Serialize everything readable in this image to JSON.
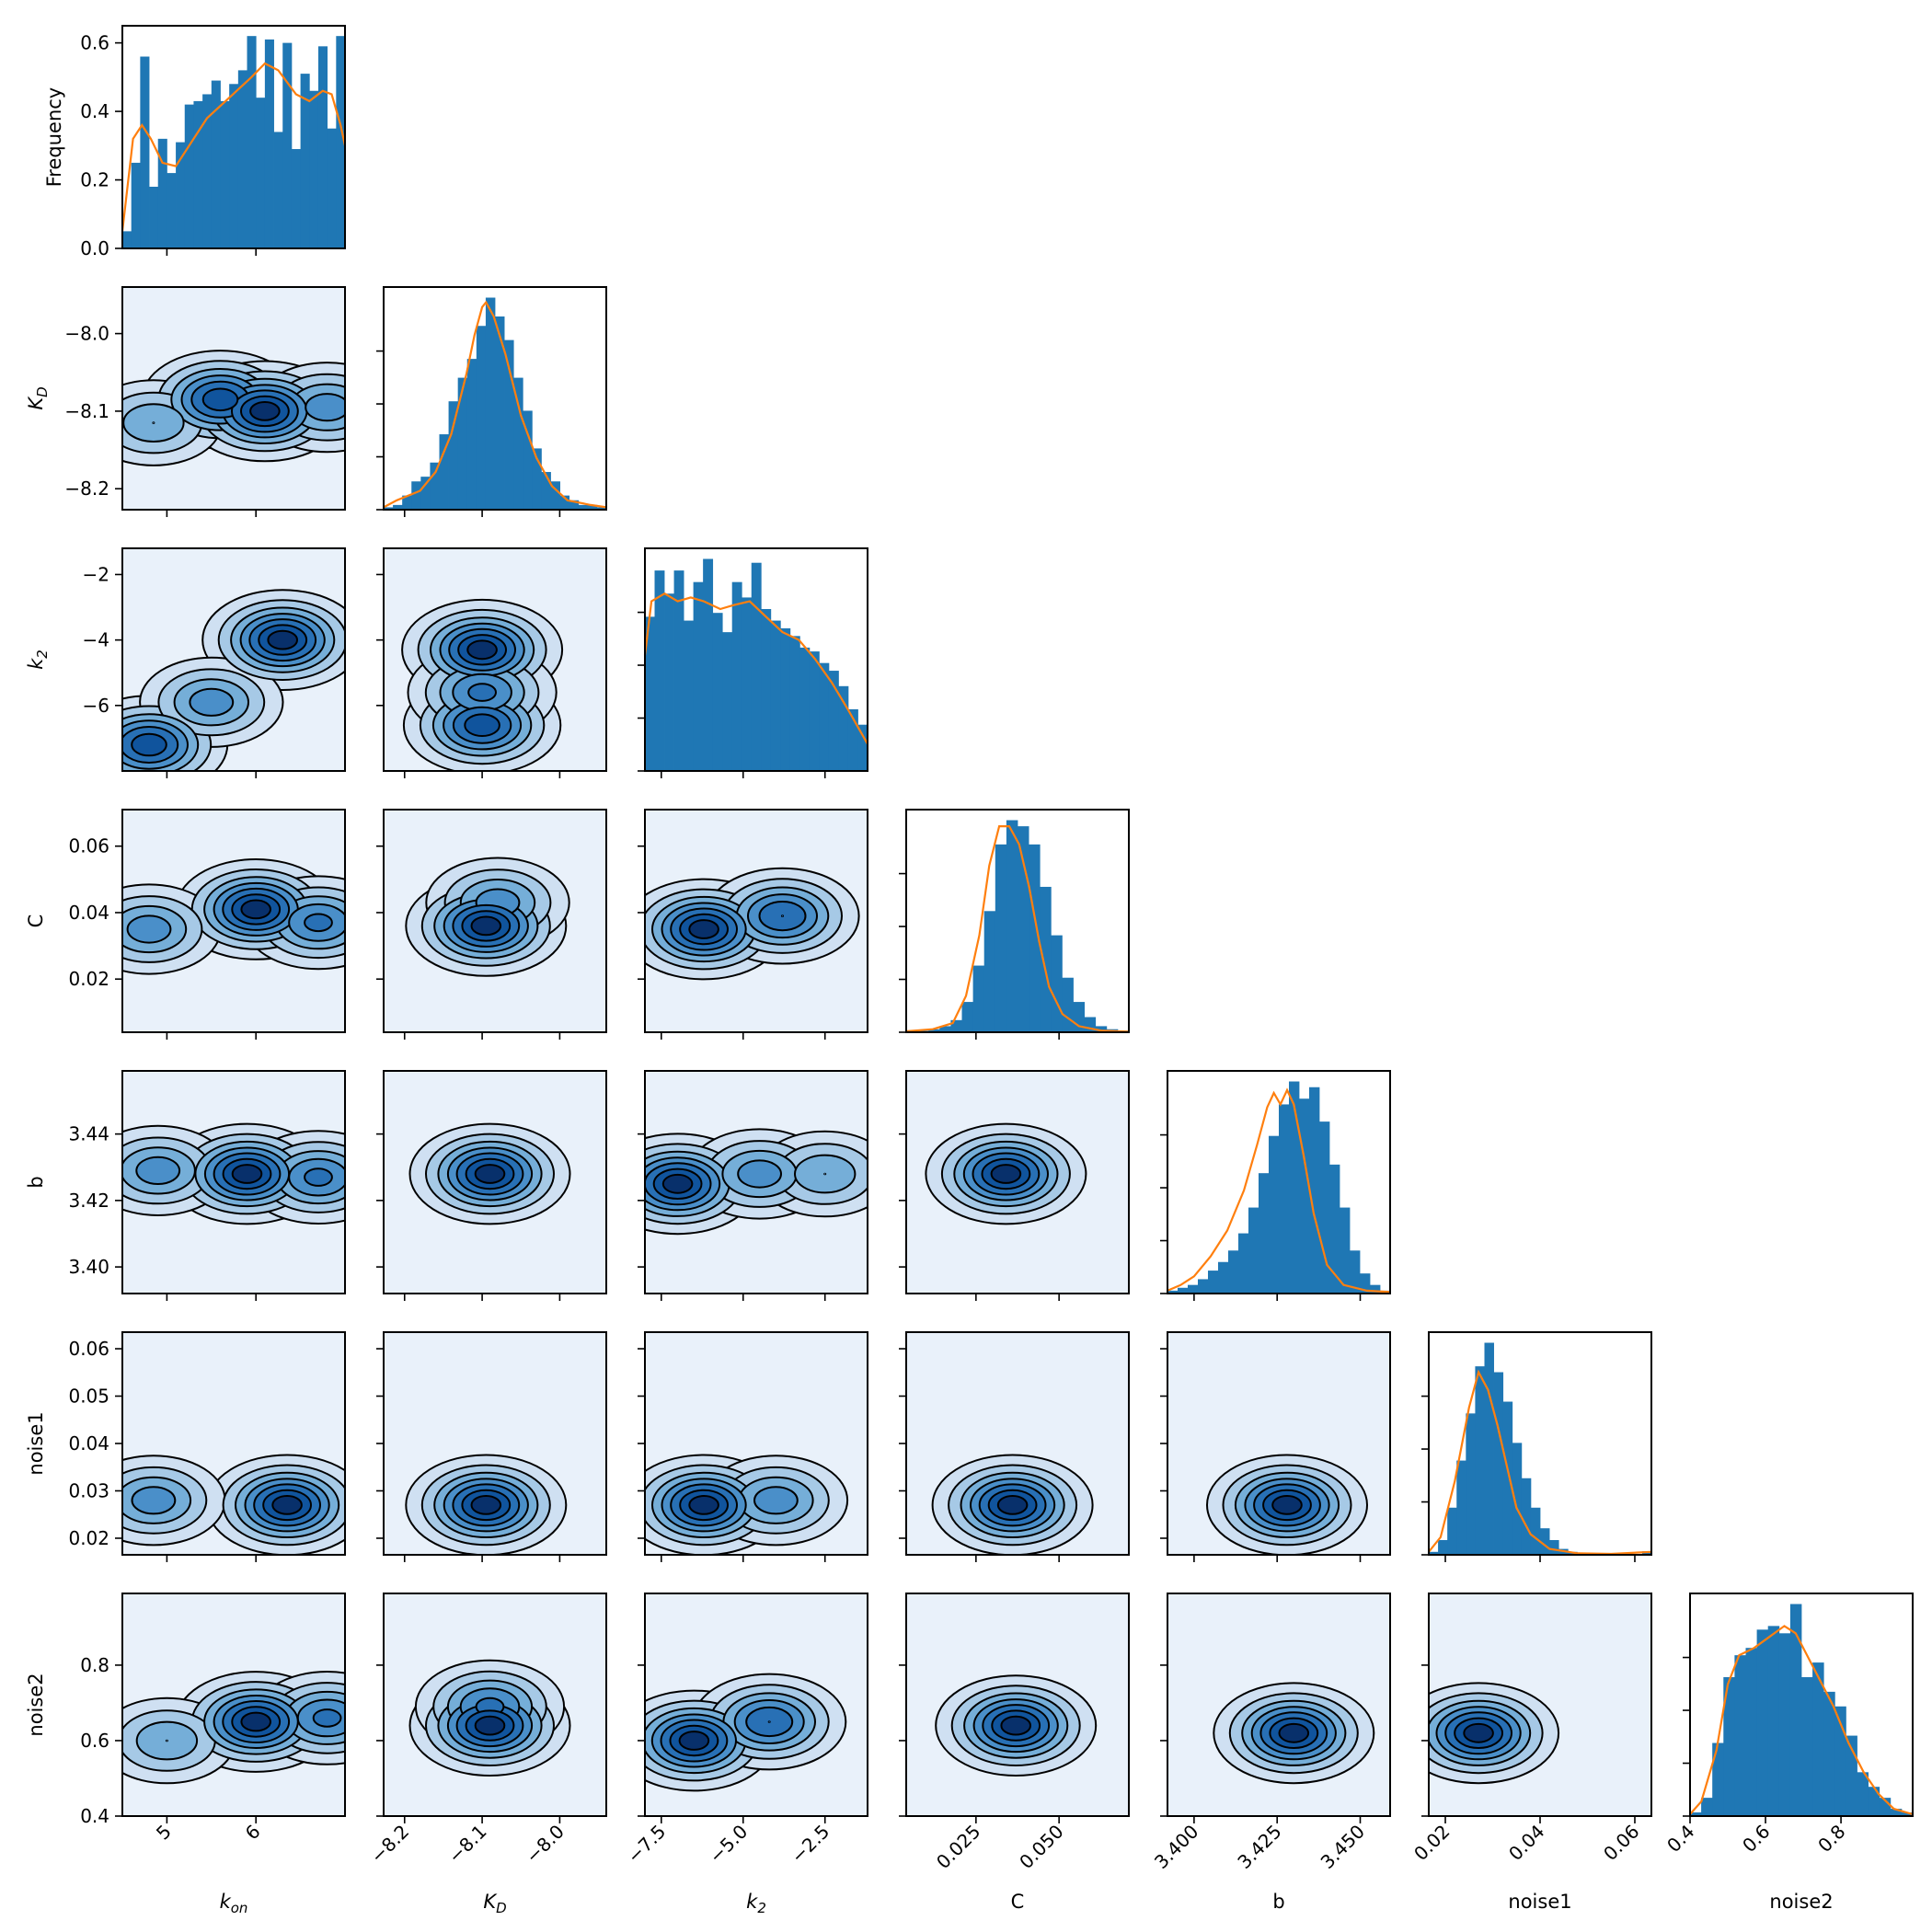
{
  "chart_data": {
    "type": "pairplot",
    "diag_ylabel": "Frequency",
    "variables": [
      {
        "key": "kon",
        "label": "k_on",
        "label_text": "kon",
        "range": [
          4.5,
          7.0
        ],
        "ticks": [
          5,
          6
        ],
        "tick_labels": [
          "5",
          "6"
        ],
        "hist_bins": [
          0.05,
          0.25,
          0.56,
          0.18,
          0.32,
          0.22,
          0.31,
          0.42,
          0.43,
          0.45,
          0.49,
          0.43,
          0.48,
          0.52,
          0.62,
          0.44,
          0.61,
          0.34,
          0.6,
          0.29,
          0.51,
          0.46,
          0.59,
          0.35,
          0.62
        ],
        "kde": [
          [
            4.5,
            0.05
          ],
          [
            4.62,
            0.32
          ],
          [
            4.72,
            0.36
          ],
          [
            4.82,
            0.32
          ],
          [
            4.95,
            0.25
          ],
          [
            5.1,
            0.24
          ],
          [
            5.25,
            0.3
          ],
          [
            5.45,
            0.38
          ],
          [
            5.7,
            0.44
          ],
          [
            5.95,
            0.5
          ],
          [
            6.1,
            0.54
          ],
          [
            6.25,
            0.52
          ],
          [
            6.45,
            0.45
          ],
          [
            6.6,
            0.43
          ],
          [
            6.75,
            0.46
          ],
          [
            6.85,
            0.45
          ],
          [
            6.95,
            0.36
          ],
          [
            7.0,
            0.3
          ]
        ]
      },
      {
        "key": "KD",
        "label": "K_D",
        "label_text": "KD",
        "range": [
          -8.227,
          -7.94
        ],
        "ticks": [
          -8.2,
          -8.1,
          -8.0
        ],
        "tick_labels": [
          "−8.2",
          "−8.1",
          "−8.0"
        ],
        "hist_bins": [
          0.005,
          0.01,
          0.03,
          0.06,
          0.07,
          0.1,
          0.16,
          0.23,
          0.28,
          0.32,
          0.39,
          0.45,
          0.41,
          0.36,
          0.28,
          0.21,
          0.13,
          0.08,
          0.06,
          0.03,
          0.02,
          0.01,
          0.01,
          0.005
        ],
        "kde": [
          [
            -8.227,
            0.005
          ],
          [
            -8.21,
            0.02
          ],
          [
            -8.18,
            0.04
          ],
          [
            -8.16,
            0.08
          ],
          [
            -8.14,
            0.16
          ],
          [
            -8.12,
            0.29
          ],
          [
            -8.11,
            0.37
          ],
          [
            -8.1,
            0.43
          ],
          [
            -8.095,
            0.44
          ],
          [
            -8.085,
            0.41
          ],
          [
            -8.07,
            0.33
          ],
          [
            -8.05,
            0.2
          ],
          [
            -8.03,
            0.11
          ],
          [
            -8.01,
            0.05
          ],
          [
            -7.99,
            0.02
          ],
          [
            -7.96,
            0.01
          ],
          [
            -7.94,
            0.005
          ]
        ]
      },
      {
        "key": "k2",
        "label": "k_2",
        "label_text": "k2",
        "range": [
          -8.0,
          -1.2
        ],
        "ticks": [
          -7.5,
          -5.0,
          -2.5
        ],
        "tick_labels": [
          "−7.5",
          "−5.0",
          "−2.5"
        ],
        "hist_bins": [
          0.4,
          0.52,
          0.46,
          0.52,
          0.39,
          0.49,
          0.55,
          0.41,
          0.36,
          0.49,
          0.45,
          0.54,
          0.42,
          0.39,
          0.37,
          0.35,
          0.32,
          0.31,
          0.28,
          0.26,
          0.22,
          0.16,
          0.12
        ],
        "kde": [
          [
            -8.0,
            0.3
          ],
          [
            -7.8,
            0.44
          ],
          [
            -7.4,
            0.46
          ],
          [
            -7.0,
            0.44
          ],
          [
            -6.6,
            0.45
          ],
          [
            -6.2,
            0.44
          ],
          [
            -5.7,
            0.42
          ],
          [
            -5.3,
            0.43
          ],
          [
            -4.8,
            0.44
          ],
          [
            -4.3,
            0.4
          ],
          [
            -3.8,
            0.36
          ],
          [
            -3.3,
            0.34
          ],
          [
            -2.8,
            0.29
          ],
          [
            -2.3,
            0.23
          ],
          [
            -1.8,
            0.16
          ],
          [
            -1.2,
            0.07
          ]
        ]
      },
      {
        "key": "C",
        "label": "C",
        "label_text": "C",
        "range": [
          0.004,
          0.071
        ],
        "ticks": [
          0.025,
          0.05
        ],
        "tick_labels": [
          "0.025",
          "0.050"
        ],
        "hist_bins": [
          0.002,
          0.005,
          0.01,
          0.02,
          0.04,
          0.1,
          0.22,
          0.4,
          0.62,
          0.7,
          0.68,
          0.62,
          0.48,
          0.32,
          0.18,
          0.1,
          0.05,
          0.02,
          0.01,
          0.005
        ],
        "kde": [
          [
            0.004,
            0.003
          ],
          [
            0.012,
            0.01
          ],
          [
            0.018,
            0.03
          ],
          [
            0.022,
            0.12
          ],
          [
            0.026,
            0.32
          ],
          [
            0.029,
            0.55
          ],
          [
            0.032,
            0.68
          ],
          [
            0.035,
            0.68
          ],
          [
            0.038,
            0.62
          ],
          [
            0.041,
            0.48
          ],
          [
            0.044,
            0.3
          ],
          [
            0.047,
            0.15
          ],
          [
            0.051,
            0.06
          ],
          [
            0.056,
            0.02
          ],
          [
            0.063,
            0.005
          ],
          [
            0.071,
            0.002
          ]
        ]
      },
      {
        "key": "b",
        "label": "b",
        "label_text": "b",
        "range": [
          3.392,
          3.459
        ],
        "ticks": [
          3.4,
          3.425,
          3.45
        ],
        "tick_labels": [
          "3.400",
          "3.425",
          "3.450"
        ],
        "hist_bins": [
          0.01,
          0.02,
          0.03,
          0.05,
          0.08,
          0.11,
          0.15,
          0.21,
          0.3,
          0.42,
          0.55,
          0.66,
          0.74,
          0.68,
          0.72,
          0.6,
          0.45,
          0.3,
          0.15,
          0.07,
          0.03,
          0.01
        ],
        "kde": [
          [
            3.392,
            0.01
          ],
          [
            3.396,
            0.03
          ],
          [
            3.4,
            0.06
          ],
          [
            3.405,
            0.13
          ],
          [
            3.41,
            0.22
          ],
          [
            3.415,
            0.36
          ],
          [
            3.419,
            0.52
          ],
          [
            3.422,
            0.65
          ],
          [
            3.424,
            0.7
          ],
          [
            3.426,
            0.66
          ],
          [
            3.428,
            0.71
          ],
          [
            3.43,
            0.66
          ],
          [
            3.433,
            0.48
          ],
          [
            3.436,
            0.28
          ],
          [
            3.44,
            0.1
          ],
          [
            3.445,
            0.03
          ],
          [
            3.452,
            0.01
          ],
          [
            3.459,
            0.005
          ]
        ]
      },
      {
        "key": "noise1",
        "label": "noise1",
        "label_text": "noise1",
        "range": [
          0.0165,
          0.0635
        ],
        "ticks": [
          0.02,
          0.04,
          0.06
        ],
        "tick_labels": [
          "0.02",
          "0.04",
          "0.06"
        ],
        "hist_bins": [
          0.01,
          0.05,
          0.16,
          0.32,
          0.48,
          0.64,
          0.72,
          0.62,
          0.52,
          0.38,
          0.26,
          0.16,
          0.09,
          0.05,
          0.02,
          0.01,
          0.005,
          0.003,
          0.002,
          0.001,
          0.001,
          0.002,
          0.003,
          0.012
        ],
        "kde": [
          [
            0.0165,
            0.01
          ],
          [
            0.019,
            0.06
          ],
          [
            0.022,
            0.25
          ],
          [
            0.025,
            0.5
          ],
          [
            0.027,
            0.62
          ],
          [
            0.029,
            0.56
          ],
          [
            0.031,
            0.44
          ],
          [
            0.033,
            0.3
          ],
          [
            0.035,
            0.16
          ],
          [
            0.038,
            0.07
          ],
          [
            0.042,
            0.02
          ],
          [
            0.048,
            0.005
          ],
          [
            0.055,
            0.003
          ],
          [
            0.0635,
            0.01
          ]
        ]
      },
      {
        "key": "noise2",
        "label": "noise2",
        "label_text": "noise2",
        "range": [
          0.4,
          0.99
        ],
        "ticks": [
          0.4,
          0.6,
          0.8
        ],
        "tick_labels": [
          "0.4",
          "0.6",
          "0.8"
        ],
        "hist_bins": [
          0.01,
          0.05,
          0.2,
          0.38,
          0.44,
          0.46,
          0.51,
          0.52,
          0.5,
          0.58,
          0.38,
          0.42,
          0.34,
          0.3,
          0.22,
          0.12,
          0.08,
          0.05,
          0.02,
          0.01
        ],
        "kde": [
          [
            0.4,
            0.005
          ],
          [
            0.43,
            0.04
          ],
          [
            0.47,
            0.18
          ],
          [
            0.5,
            0.36
          ],
          [
            0.53,
            0.44
          ],
          [
            0.57,
            0.46
          ],
          [
            0.61,
            0.49
          ],
          [
            0.65,
            0.52
          ],
          [
            0.68,
            0.5
          ],
          [
            0.71,
            0.44
          ],
          [
            0.74,
            0.38
          ],
          [
            0.78,
            0.3
          ],
          [
            0.82,
            0.2
          ],
          [
            0.86,
            0.12
          ],
          [
            0.9,
            0.06
          ],
          [
            0.94,
            0.02
          ],
          [
            0.99,
            0.005
          ]
        ]
      }
    ],
    "diag0_yticks": [
      0.0,
      0.2,
      0.4,
      0.6
    ],
    "diag0_ytick_labels": [
      "0.0",
      "0.2",
      "0.4",
      "0.6"
    ],
    "diag0_ylim": [
      0,
      0.65
    ],
    "offdiag_ylim": {
      "KD": [
        -8.227,
        -7.94
      ],
      "k2": [
        -8.0,
        -1.2
      ],
      "C": [
        0.004,
        0.071
      ],
      "b": [
        3.392,
        3.459
      ],
      "noise1": [
        0.0165,
        0.0635
      ],
      "noise2": [
        0.4,
        0.99
      ]
    },
    "offdiag_yticks": {
      "KD": {
        "ticks": [
          -8.0,
          -8.1,
          -8.2
        ],
        "labels": [
          "−8.0",
          "−8.1",
          "−8.2"
        ]
      },
      "k2": {
        "ticks": [
          -2,
          -4,
          -6
        ],
        "labels": [
          "−2",
          "−4",
          "−6"
        ]
      },
      "C": {
        "ticks": [
          0.06,
          0.04,
          0.02
        ],
        "labels": [
          "0.06",
          "0.04",
          "0.02"
        ]
      },
      "b": {
        "ticks": [
          3.44,
          3.42,
          3.4
        ],
        "labels": [
          "3.44",
          "3.42",
          "3.40"
        ]
      },
      "noise1": {
        "ticks": [
          0.06,
          0.05,
          0.04,
          0.03,
          0.02
        ],
        "labels": [
          "0.06",
          "0.05",
          "0.04",
          "0.03",
          "0.02"
        ]
      },
      "noise2": {
        "ticks": [
          0.8,
          0.6,
          0.4
        ],
        "labels": [
          "0.8",
          "0.6",
          "0.4"
        ]
      }
    },
    "kde2d_modes": {
      "1-0": [
        [
          5.6,
          -8.085,
          0.9
        ],
        [
          6.1,
          -8.1,
          1.0
        ],
        [
          4.85,
          -8.115,
          0.5
        ],
        [
          6.8,
          -8.095,
          0.6
        ]
      ],
      "2-0": [
        [
          6.3,
          -4.0,
          1.0
        ],
        [
          4.8,
          -7.2,
          0.9
        ],
        [
          5.5,
          -5.9,
          0.6
        ]
      ],
      "2-1": [
        [
          -8.1,
          -4.3,
          1.0
        ],
        [
          -8.1,
          -6.6,
          0.9
        ],
        [
          -8.1,
          -5.6,
          0.7
        ]
      ],
      "3-0": [
        [
          6.0,
          0.041,
          1.0
        ],
        [
          4.8,
          0.035,
          0.6
        ],
        [
          6.7,
          0.037,
          0.7
        ]
      ],
      "3-1": [
        [
          -8.095,
          0.036,
          1.0
        ],
        [
          -8.08,
          0.043,
          0.6
        ]
      ],
      "3-2": [
        [
          -6.2,
          0.035,
          1.0
        ],
        [
          -3.8,
          0.039,
          0.8
        ]
      ],
      "4-0": [
        [
          5.9,
          3.428,
          1.0
        ],
        [
          6.7,
          3.427,
          0.7
        ],
        [
          4.9,
          3.429,
          0.6
        ]
      ],
      "4-1": [
        [
          -8.09,
          3.428,
          1.0
        ]
      ],
      "4-2": [
        [
          -7.0,
          3.425,
          1.0
        ],
        [
          -4.5,
          3.428,
          0.6
        ],
        [
          -2.5,
          3.428,
          0.5
        ]
      ],
      "4-3": [
        [
          0.034,
          3.428,
          1.0
        ]
      ],
      "5-0": [
        [
          6.35,
          0.027,
          1.0
        ],
        [
          4.85,
          0.028,
          0.6
        ]
      ],
      "5-1": [
        [
          -8.095,
          0.027,
          1.0
        ]
      ],
      "5-2": [
        [
          -6.2,
          0.027,
          1.0
        ],
        [
          -4.0,
          0.028,
          0.6
        ]
      ],
      "5-3": [
        [
          0.036,
          0.027,
          1.0
        ]
      ],
      "5-4": [
        [
          3.428,
          0.027,
          1.0
        ]
      ],
      "5-5": [],
      "6-0": [
        [
          6.0,
          0.65,
          1.0
        ],
        [
          6.8,
          0.66,
          0.7
        ],
        [
          5.0,
          0.6,
          0.5
        ]
      ],
      "6-1": [
        [
          -8.09,
          0.64,
          1.0
        ],
        [
          -8.09,
          0.69,
          0.7
        ]
      ],
      "6-2": [
        [
          -6.5,
          0.6,
          1.0
        ],
        [
          -4.2,
          0.65,
          0.8
        ]
      ],
      "6-3": [
        [
          0.037,
          0.64,
          1.0
        ]
      ],
      "6-4": [
        [
          3.43,
          0.62,
          1.0
        ]
      ],
      "6-5": [
        [
          0.027,
          0.62,
          1.0
        ]
      ]
    }
  }
}
